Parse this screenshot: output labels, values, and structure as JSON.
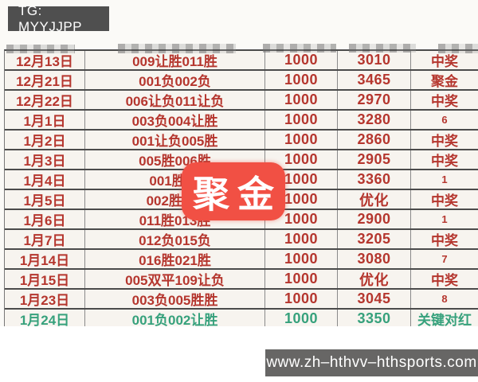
{
  "header": {
    "tg_badge": "TG: MYYJJPP"
  },
  "stamp": {
    "text": "聚金"
  },
  "footer": {
    "url_badge": "www.zh–hthvv–hthsports.com"
  },
  "colors": {
    "red_text": "#b5362e",
    "green_text": "#36a17c",
    "table_line": "#4b4b4b",
    "cell_bg": "#f7f4ef",
    "tg_badge_bg": "#4f4f4f",
    "url_badge_bg": "#676665",
    "stamp_red": "#f15044"
  },
  "table": {
    "rows": [
      {
        "date": "12月13日",
        "picks": "009让胜011胜",
        "stake": "1000",
        "return": "3010",
        "status": "中奖",
        "color": "red"
      },
      {
        "date": "12月21日",
        "picks": "001负002负",
        "stake": "1000",
        "return": "3465",
        "status": "聚金",
        "color": "red"
      },
      {
        "date": "12月22日",
        "picks": "006让负011让负",
        "stake": "1000",
        "return": "2970",
        "status": "中奖",
        "color": "red"
      },
      {
        "date": "1月1日",
        "picks": "003负004让胜",
        "stake": "1000",
        "return": "3280",
        "status": "6",
        "color": "red"
      },
      {
        "date": "1月2日",
        "picks": "001让负005胜",
        "stake": "1000",
        "return": "2860",
        "status": "中奖",
        "color": "red"
      },
      {
        "date": "1月3日",
        "picks": "005胜006胜",
        "stake": "1000",
        "return": "2905",
        "status": "中奖",
        "color": "red"
      },
      {
        "date": "1月4日",
        "picks": "001胜00",
        "stake": "1000",
        "return": "3360",
        "status": "1",
        "color": "red"
      },
      {
        "date": "1月5日",
        "picks": "002胜胜0",
        "stake": "1000",
        "return": "优化",
        "status": "中奖",
        "color": "red"
      },
      {
        "date": "1月6日",
        "picks": "011胜013胜",
        "stake": "1000",
        "return": "2900",
        "status": "1",
        "color": "red"
      },
      {
        "date": "1月7日",
        "picks": "012负015负",
        "stake": "1000",
        "return": "3205",
        "status": "中奖",
        "color": "red"
      },
      {
        "date": "1月14日",
        "picks": "016胜021胜",
        "stake": "1000",
        "return": "3080",
        "status": "7",
        "color": "red"
      },
      {
        "date": "1月15日",
        "picks": "005双平109让负",
        "stake": "1000",
        "return": "优化",
        "status": "中奖",
        "color": "red"
      },
      {
        "date": "1月23日",
        "picks": "003负005胜胜",
        "stake": "1000",
        "return": "3045",
        "status": "8",
        "color": "red"
      },
      {
        "date": "1月24日",
        "picks": "001负002让胜",
        "stake": "1000",
        "return": "3350",
        "status": "关键对红",
        "color": "green"
      }
    ]
  }
}
